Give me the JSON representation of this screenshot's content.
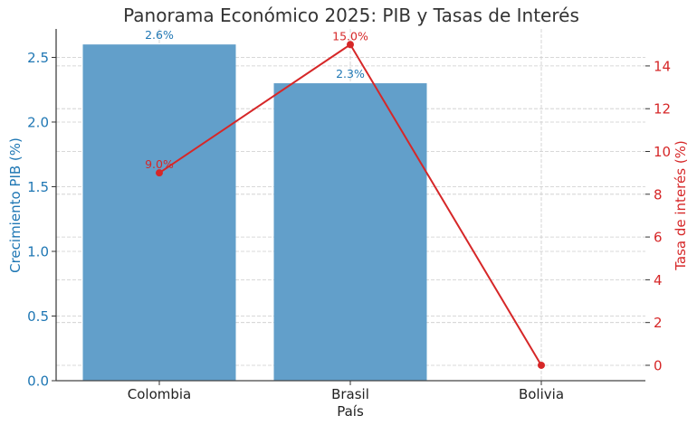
{
  "chart_data": {
    "type": "bar+line",
    "title": "Panorama Económico 2025: PIB y Tasas de Interés",
    "xlabel": "País",
    "categories": [
      "Colombia",
      "Brasil",
      "Bolivia"
    ],
    "series": [
      {
        "name": "Crecimiento PIB (%)",
        "type": "bar",
        "axis": "left",
        "color": "#629fca",
        "values": [
          2.6,
          2.3,
          null
        ],
        "labels": [
          "2.6%",
          "2.3%",
          null
        ]
      },
      {
        "name": "Tasa de interés (%)",
        "type": "line",
        "axis": "right",
        "color": "#d62728",
        "values": [
          9.0,
          15.0,
          0.0
        ],
        "labels": [
          "9.0%",
          "15.0%",
          null
        ]
      }
    ],
    "y_left": {
      "label": "Crecimiento PIB (%)",
      "ylim": [
        0,
        2.72
      ],
      "ticks": [
        0.0,
        0.5,
        1.0,
        1.5,
        2.0,
        2.5
      ],
      "tick_labels": [
        "0.0",
        "0.5",
        "1.0",
        "1.5",
        "2.0",
        "2.5"
      ],
      "color": "#1f77b4"
    },
    "y_right": {
      "label": "Tasa de interés (%)",
      "ylim": [
        -0.72,
        15.73
      ],
      "ticks": [
        0,
        2,
        4,
        6,
        8,
        10,
        12,
        14
      ],
      "tick_labels": [
        "0",
        "2",
        "4",
        "6",
        "8",
        "10",
        "12",
        "14"
      ],
      "color": "#d62728"
    },
    "grid": true,
    "legend": null
  }
}
